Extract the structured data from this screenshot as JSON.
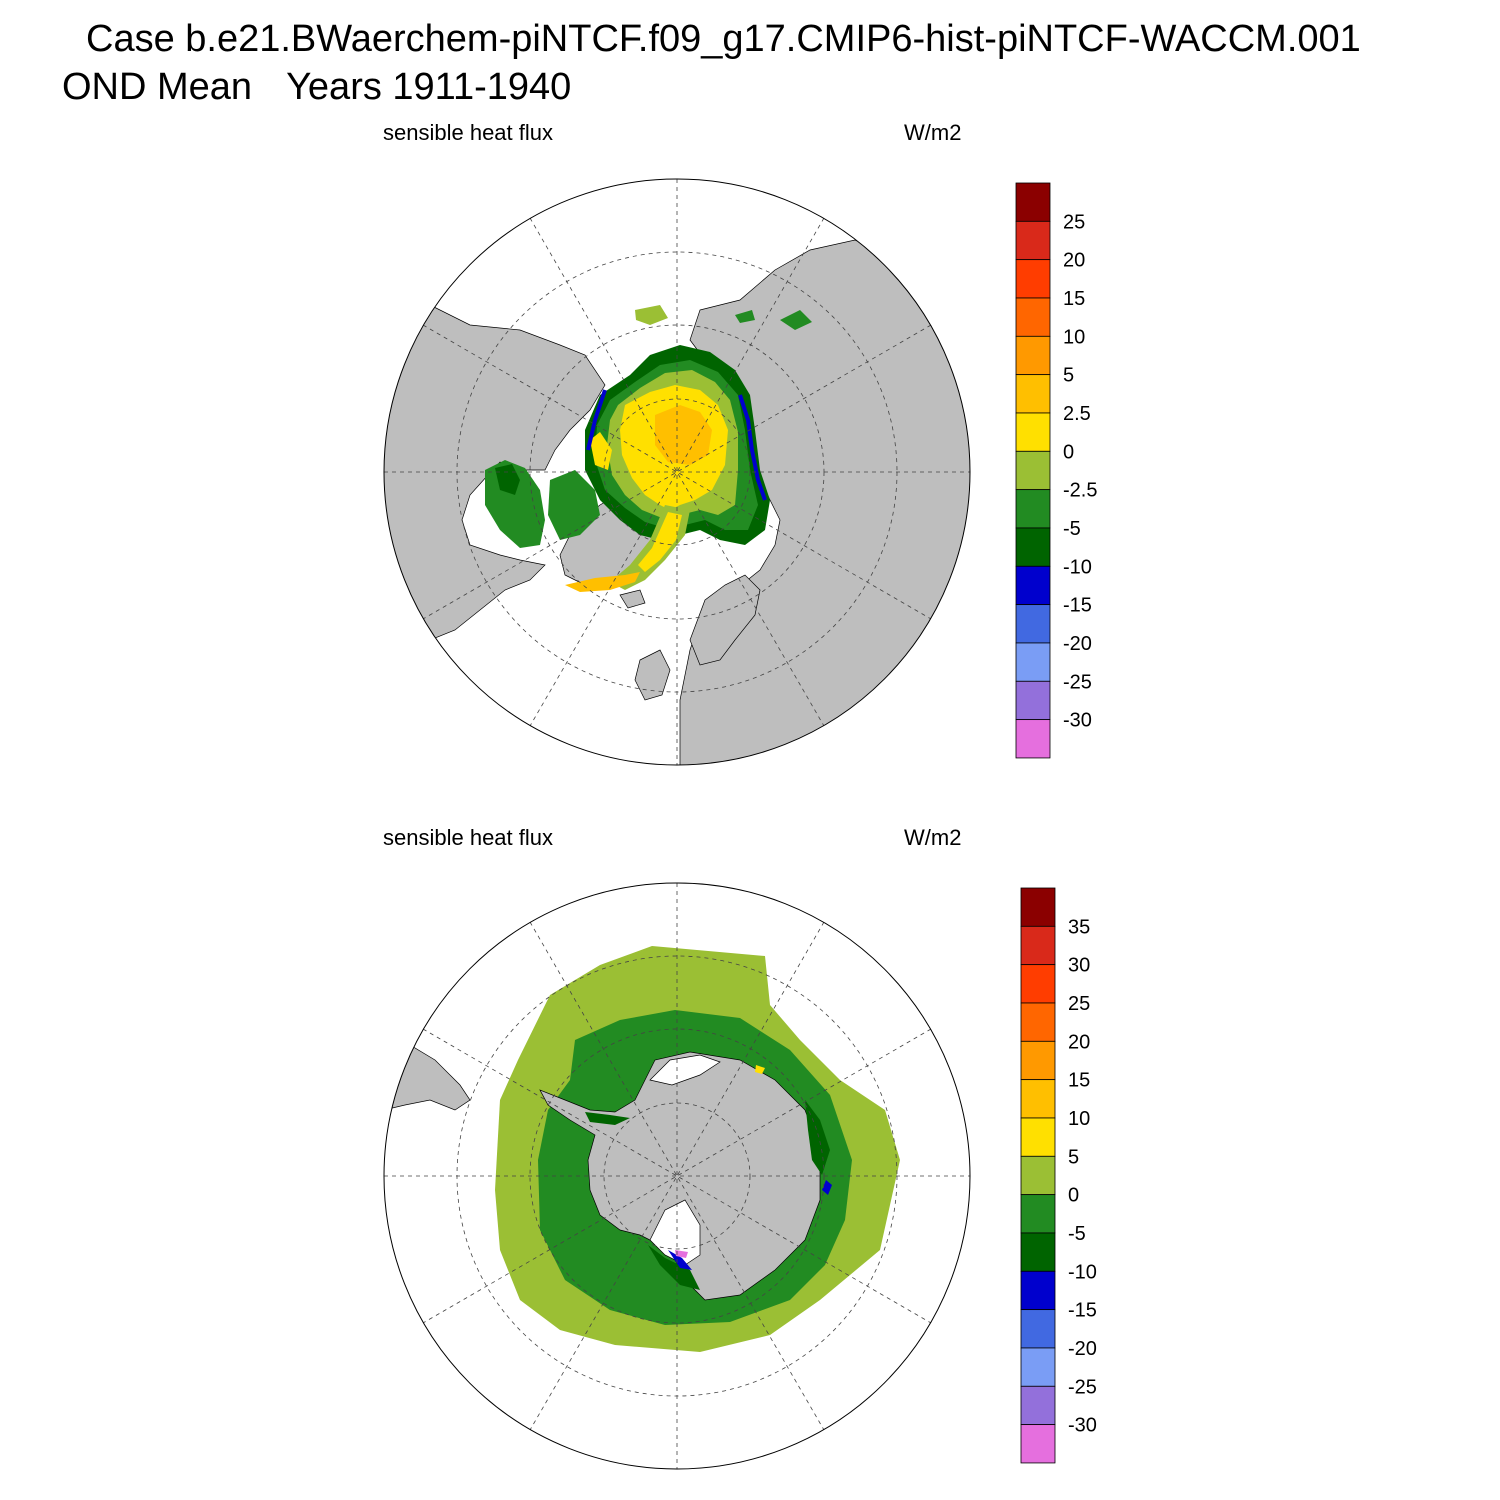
{
  "title": {
    "case": "Case b.e21.BWaerchem-piNTCF.f09_g17.CMIP6-hist-piNTCF-WACCM.001",
    "season": "OND Mean",
    "years": "Years 1911-1940"
  },
  "panels": [
    {
      "id": "north",
      "left_label": "sensible heat flux",
      "right_label": "W/m2",
      "colorbar": {
        "labels": [
          "25",
          "20",
          "15",
          "10",
          "5",
          "2.5",
          "0",
          "-2.5",
          "-5",
          "-10",
          "-15",
          "-20",
          "-25",
          "-30"
        ],
        "colors": [
          "#8b0000",
          "#d9291a",
          "#ff3d00",
          "#ff6600",
          "#ff9900",
          "#ffbf00",
          "#ffe000",
          "#9bbf34",
          "#228b22",
          "#006400",
          "#0000cd",
          "#4169e1",
          "#7a9df5",
          "#9370db",
          "#e56fde"
        ]
      }
    },
    {
      "id": "south",
      "left_label": "sensible heat flux",
      "right_label": "W/m2",
      "colorbar": {
        "labels": [
          "35",
          "30",
          "25",
          "20",
          "15",
          "10",
          "5",
          "0",
          "-5",
          "-10",
          "-15",
          "-20",
          "-25",
          "-30"
        ],
        "colors": [
          "#8b0000",
          "#d9291a",
          "#ff3d00",
          "#ff6600",
          "#ff9900",
          "#ffbf00",
          "#ffe000",
          "#9bbf34",
          "#228b22",
          "#006400",
          "#0000cd",
          "#4169e1",
          "#7a9df5",
          "#9370db",
          "#e56fde"
        ]
      }
    }
  ]
}
